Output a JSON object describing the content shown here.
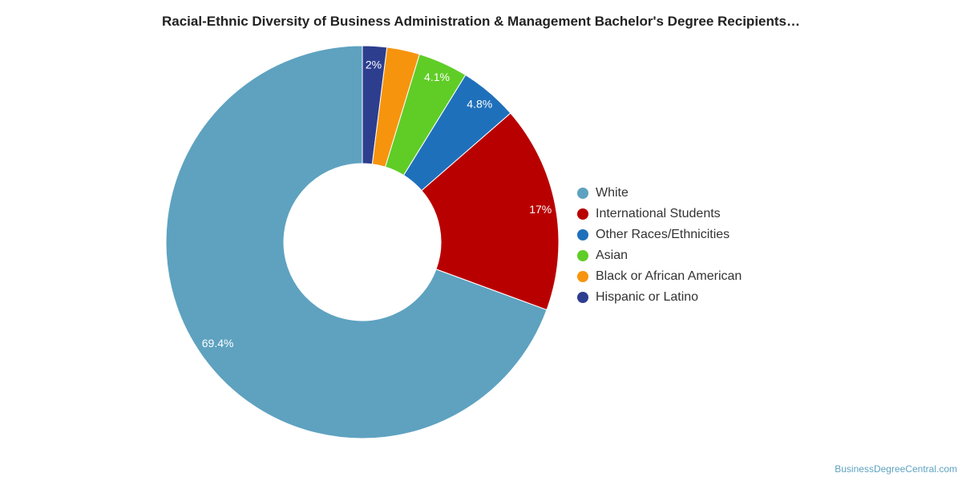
{
  "chart_data": {
    "type": "pie",
    "donut": true,
    "title": "Racial-Ethnic Diversity of Business Administration & Management Bachelor's Degree Recipients…",
    "legend_position": "right",
    "series": [
      {
        "name": "White",
        "value": 69.4,
        "label": "69.4%",
        "color": "#5ea2c0"
      },
      {
        "name": "International Students",
        "value": 17,
        "label": "17%",
        "color": "#b90000"
      },
      {
        "name": "Other Races/Ethnicities",
        "value": 4.8,
        "label": "4.8%",
        "color": "#1f70bb"
      },
      {
        "name": "Asian",
        "value": 4.1,
        "label": "4.1%",
        "color": "#60cd27"
      },
      {
        "name": "Black or African American",
        "value": 2.7,
        "label": "",
        "color": "#f7940e"
      },
      {
        "name": "Hispanic or Latino",
        "value": 2,
        "label": "2%",
        "color": "#2d3e8f"
      }
    ]
  },
  "footer": {
    "credit": "BusinessDegreeCentral.com"
  }
}
